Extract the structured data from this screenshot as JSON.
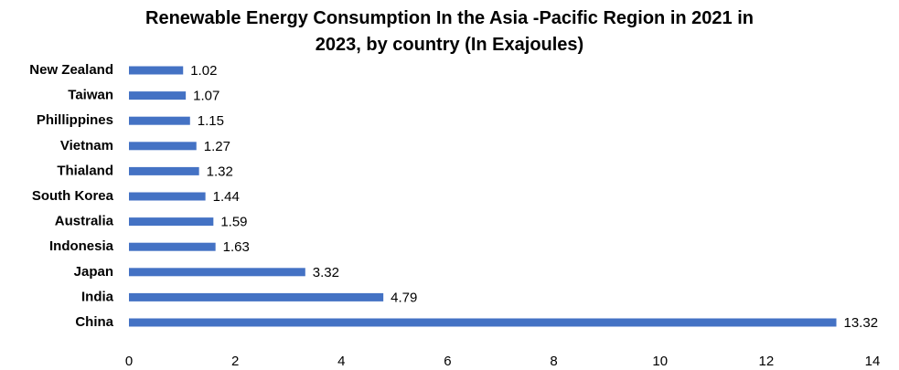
{
  "chart_data": {
    "type": "bar",
    "orientation": "horizontal",
    "title_lines": [
      "Renewable Energy Consumption  In the Asia  -Pacific Region in 2021 in",
      "2023, by country (In Exajoules)"
    ],
    "categories": [
      "New Zealand",
      "Taiwan",
      "Phillippines",
      "Vietnam",
      "Thialand",
      "South Korea",
      "Australia",
      "Indonesia",
      "Japan",
      "India",
      "China"
    ],
    "values": [
      1.02,
      1.07,
      1.15,
      1.27,
      1.32,
      1.44,
      1.59,
      1.63,
      3.32,
      4.79,
      13.32
    ],
    "value_labels": [
      "1.02",
      "1.07",
      "1.15",
      "1.27",
      "1.32",
      "1.44",
      "1.59",
      "1.63",
      "3.32",
      "4.79",
      "13.32"
    ],
    "xlim": [
      0,
      14
    ],
    "xticks": [
      0,
      2,
      4,
      6,
      8,
      10,
      12,
      14
    ],
    "grid": false,
    "bar_color": "#4472C4"
  }
}
